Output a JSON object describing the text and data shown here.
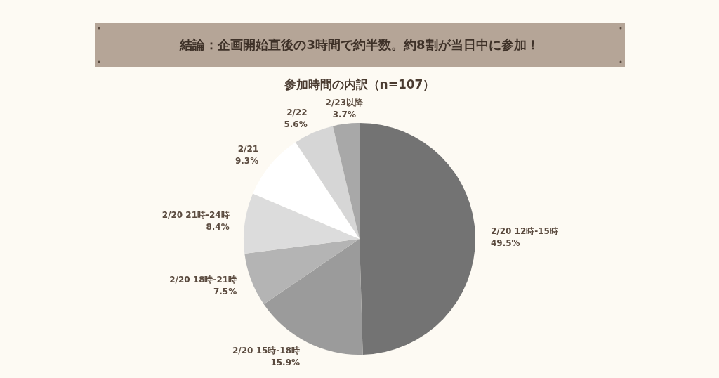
{
  "chart_data": {
    "type": "pie",
    "title": "結論：企画開始直後の3時間で約半数。約8割が当日中に参加！",
    "subtitle": "参加時間の内訳（n=107）",
    "categories": [
      "2/20 12時-15時",
      "2/20 15時-18時",
      "2/20 18時-21時",
      "2/20 21時-24時",
      "2/21",
      "2/22",
      "2/23以降"
    ],
    "values": [
      49.5,
      15.9,
      7.5,
      8.4,
      9.3,
      5.6,
      3.7
    ],
    "value_labels": [
      "49.5%",
      "15.9%",
      "7.5%",
      "8.4%",
      "9.3%",
      "5.6%",
      "3.7%"
    ],
    "colors": [
      "#737373",
      "#9b9b9b",
      "#b4b4b4",
      "#dcdcdc",
      "#ffffff",
      "#d6d6d6",
      "#a8a8a8"
    ]
  }
}
